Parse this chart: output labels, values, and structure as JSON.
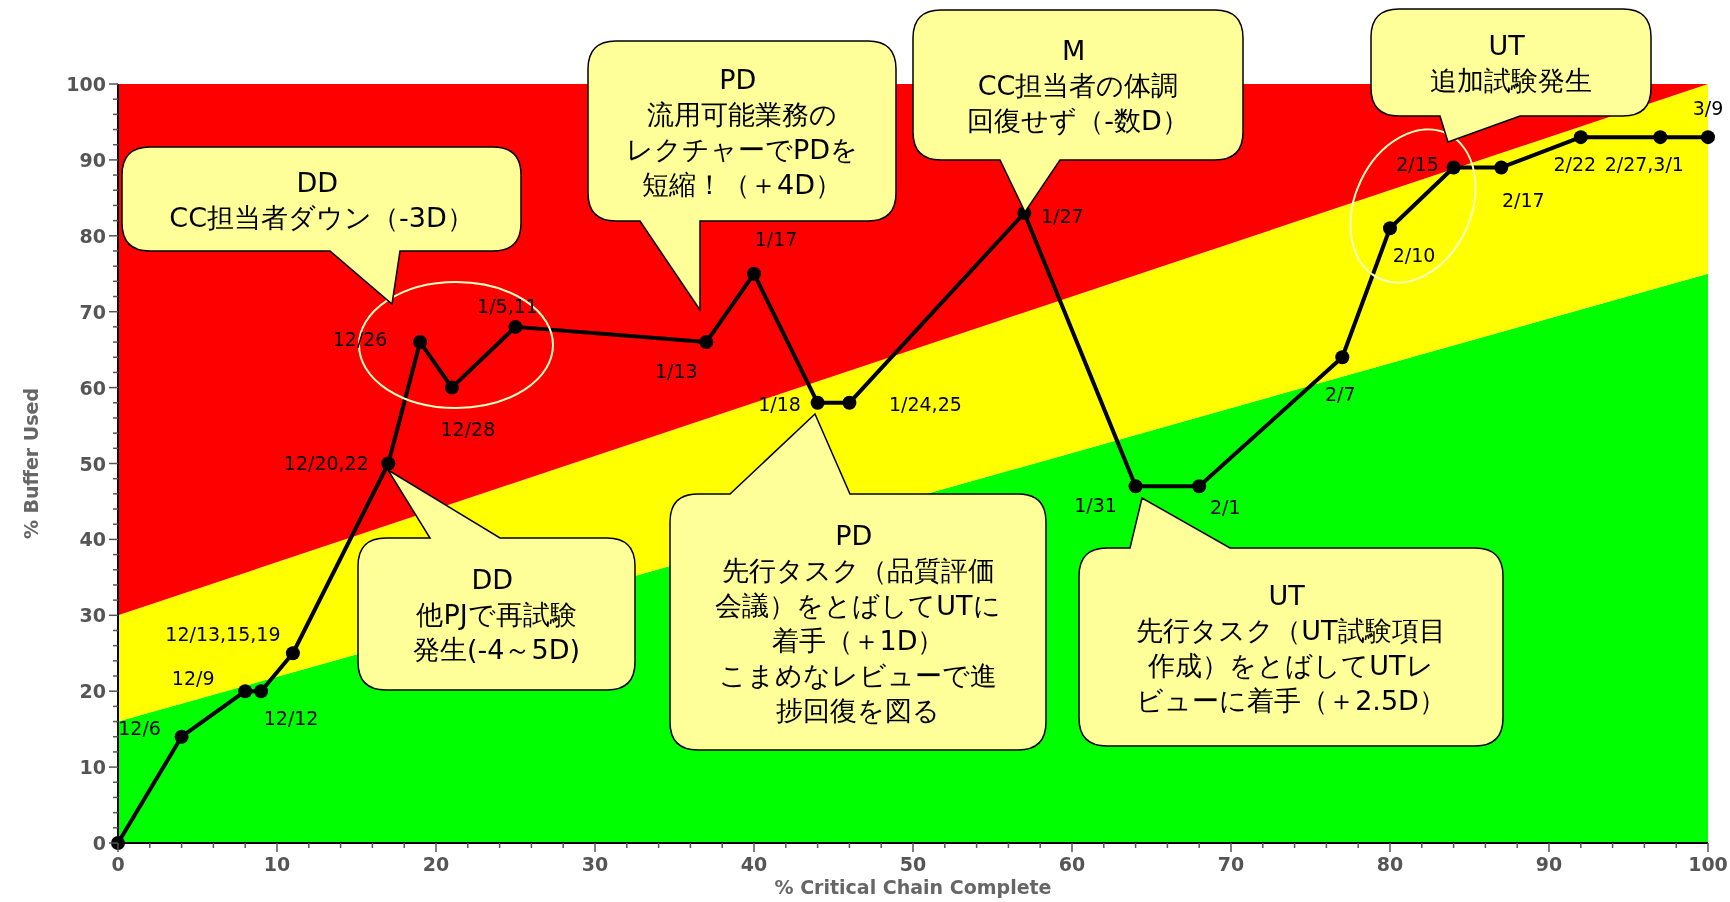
{
  "chart_data": {
    "type": "line",
    "xlabel": "% Critical Chain Complete",
    "ylabel": "% Buffer Used",
    "xlim": [
      0,
      100
    ],
    "ylim": [
      0,
      100
    ],
    "xticks": [
      0,
      10,
      20,
      30,
      40,
      50,
      60,
      70,
      80,
      90,
      100
    ],
    "yticks": [
      0,
      10,
      20,
      30,
      40,
      50,
      60,
      70,
      80,
      90,
      100
    ],
    "grid": false,
    "stacked": true,
    "series": [
      {
        "type": "area",
        "color": "#00ff00",
        "x": [
          0,
          100
        ],
        "values": [
          16,
          75
        ]
      },
      {
        "type": "area",
        "color": "#ffff00",
        "x": [
          0,
          100
        ],
        "values": [
          14,
          25
        ]
      },
      {
        "type": "area",
        "color": "#ff0000",
        "x": [
          0,
          100
        ],
        "values": [
          70,
          0
        ]
      },
      {
        "color": "#000000",
        "marker": "circle",
        "x": [
          0,
          4,
          8,
          9,
          11,
          17,
          19,
          21,
          25,
          37,
          40,
          44,
          46,
          57,
          64,
          68,
          77,
          80,
          84,
          87,
          92,
          97,
          100
        ],
        "values": [
          0,
          14,
          20,
          20,
          25,
          50,
          66,
          60,
          68,
          66,
          75,
          58,
          58,
          83,
          47,
          47,
          64,
          81,
          89,
          89,
          93,
          93,
          93
        ]
      }
    ],
    "annotations": [
      "DD CC担当者ダウン（-3D）",
      "PD 流用可能業務のレクチャーでPDを短縮！（＋4D）",
      "M CC担当者の体調回復せず（-数D）",
      "UT 追加試験発生",
      "DD 他PJで再試験発生(-4～5D)",
      "PD 先行タスク（品質評価会議）をとばしてUTに着手（＋1D）こまめなレビューで進捗回復を図る",
      "UT 先行タスク（UT試験項目作成）をとばしてUTレビューに着手（＋2.5D）",
      {
        "text": "12/6",
        "x": 4,
        "y": 14
      },
      {
        "text": "12/9",
        "x": 8,
        "y": 20
      },
      {
        "text": "12/12",
        "x": 9,
        "y": 20
      },
      {
        "text": "12/13,15,19",
        "x": 11,
        "y": 25
      },
      {
        "text": "12/20,22",
        "x": 17,
        "y": 50
      },
      {
        "text": "12/26",
        "x": 19,
        "y": 66
      },
      {
        "text": "12/28",
        "x": 21,
        "y": 60
      },
      {
        "text": "1/5,11",
        "x": 25,
        "y": 68
      },
      {
        "text": "1/13",
        "x": 37,
        "y": 66
      },
      {
        "text": "1/17",
        "x": 40,
        "y": 75
      },
      {
        "text": "1/18",
        "x": 44,
        "y": 58
      },
      {
        "text": "1/24,25",
        "x": 46,
        "y": 58
      },
      {
        "text": "1/27",
        "x": 57,
        "y": 83
      },
      {
        "text": "1/31",
        "x": 64,
        "y": 47
      },
      {
        "text": "2/1",
        "x": 68,
        "y": 47
      },
      {
        "text": "2/7",
        "x": 77,
        "y": 64
      },
      {
        "text": "2/10",
        "x": 80,
        "y": 81
      },
      {
        "text": "2/15",
        "x": 84,
        "y": 89
      },
      {
        "text": "2/17",
        "x": 87,
        "y": 89
      },
      {
        "text": "2/22",
        "x": 92,
        "y": 93
      },
      {
        "text": "2/27,3/1",
        "x": 97,
        "y": 93
      },
      {
        "text": "3/9",
        "x": 100,
        "y": 93
      }
    ]
  }
}
